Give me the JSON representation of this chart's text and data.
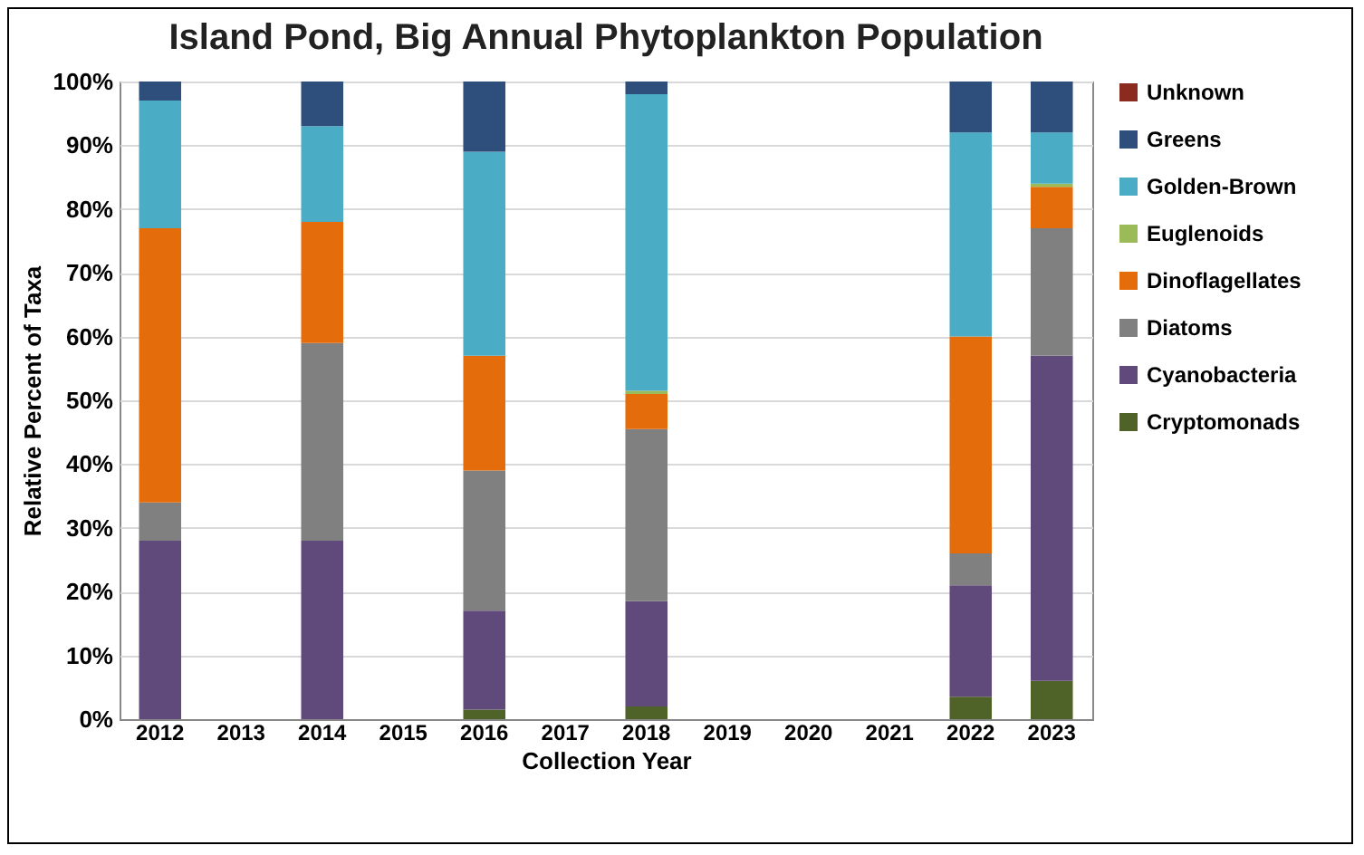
{
  "chart_data": {
    "type": "bar",
    "title": "Island Pond, Big Annual Phytoplankton Population",
    "xlabel": "Collection Year",
    "ylabel": "Relative Percent of Taxa",
    "stacked": true,
    "categories": [
      "2012",
      "2013",
      "2014",
      "2015",
      "2016",
      "2017",
      "2018",
      "2019",
      "2020",
      "2021",
      "2022",
      "2023"
    ],
    "series": [
      {
        "name": "Cryptomonads",
        "color": "#4f6228",
        "values": [
          0,
          null,
          0,
          null,
          1.5,
          null,
          2,
          null,
          null,
          null,
          3.5,
          6
        ]
      },
      {
        "name": "Cyanobacteria",
        "color": "#604a7b",
        "values": [
          28,
          null,
          28,
          null,
          15.5,
          null,
          16.5,
          null,
          null,
          null,
          17.5,
          51
        ]
      },
      {
        "name": "Diatoms",
        "color": "#808080",
        "values": [
          6,
          null,
          31,
          null,
          22,
          null,
          27,
          null,
          null,
          null,
          5,
          20
        ]
      },
      {
        "name": "Dinoflagellates",
        "color": "#e46c0a",
        "values": [
          43,
          null,
          19,
          null,
          18,
          null,
          5.5,
          null,
          null,
          null,
          34,
          6.5
        ]
      },
      {
        "name": "Euglenoids",
        "color": "#9bbb59",
        "values": [
          0,
          null,
          0,
          null,
          0,
          null,
          0.5,
          null,
          null,
          null,
          0,
          0.5
        ]
      },
      {
        "name": "Golden-Brown",
        "color": "#4bacc6",
        "values": [
          20,
          null,
          15,
          null,
          32,
          null,
          46.5,
          null,
          null,
          null,
          32,
          8
        ]
      },
      {
        "name": "Greens",
        "color": "#2e4e7c",
        "values": [
          3,
          null,
          7,
          null,
          11,
          null,
          2,
          null,
          null,
          null,
          8,
          8
        ]
      },
      {
        "name": "Unknown",
        "color": "#8b2a1e",
        "values": [
          0,
          null,
          0,
          null,
          0,
          null,
          0,
          null,
          null,
          null,
          0,
          0
        ]
      }
    ],
    "ylim": [
      0,
      100
    ],
    "yticks": [
      {
        "value": 0,
        "label": "0%"
      },
      {
        "value": 10,
        "label": "10%"
      },
      {
        "value": 20,
        "label": "20%"
      },
      {
        "value": 30,
        "label": "30%"
      },
      {
        "value": 40,
        "label": "40%"
      },
      {
        "value": 50,
        "label": "50%"
      },
      {
        "value": 60,
        "label": "60%"
      },
      {
        "value": 70,
        "label": "70%"
      },
      {
        "value": 80,
        "label": "80%"
      },
      {
        "value": 90,
        "label": "90%"
      },
      {
        "value": 100,
        "label": "100%"
      }
    ],
    "grid": "y",
    "legend": "right"
  }
}
